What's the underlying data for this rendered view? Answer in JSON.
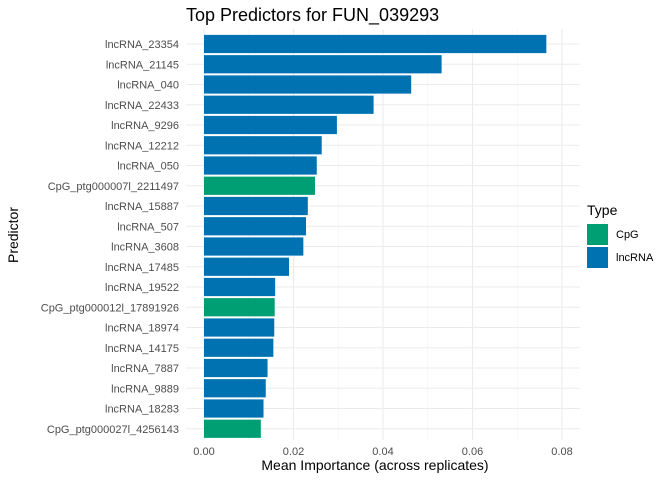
{
  "chart_data": {
    "type": "bar",
    "orientation": "horizontal",
    "title": "Top Predictors for FUN_039293",
    "xlabel": "Mean Importance (across replicates)",
    "ylabel": "Predictor",
    "xlim": [
      0,
      0.08
    ],
    "xticks": [
      0.0,
      0.02,
      0.04,
      0.06,
      0.08
    ],
    "xtick_labels": [
      "0.00",
      "0.02",
      "0.04",
      "0.06",
      "0.08"
    ],
    "grid": true,
    "legend": {
      "title": "Type",
      "position": "right",
      "entries": [
        {
          "label": "CpG",
          "color": "#009E73"
        },
        {
          "label": "lncRNA",
          "color": "#0072B2"
        }
      ]
    },
    "bars": [
      {
        "category": "lncRNA_23354",
        "value": 0.0765,
        "type": "lncRNA"
      },
      {
        "category": "lncRNA_21145",
        "value": 0.0531,
        "type": "lncRNA"
      },
      {
        "category": "lncRNA_040",
        "value": 0.0463,
        "type": "lncRNA"
      },
      {
        "category": "lncRNA_22433",
        "value": 0.0379,
        "type": "lncRNA"
      },
      {
        "category": "lncRNA_9296",
        "value": 0.0297,
        "type": "lncRNA"
      },
      {
        "category": "lncRNA_12212",
        "value": 0.0263,
        "type": "lncRNA"
      },
      {
        "category": "lncRNA_050",
        "value": 0.0252,
        "type": "lncRNA"
      },
      {
        "category": "CpG_ptg000007l_2211497",
        "value": 0.0248,
        "type": "CpG"
      },
      {
        "category": "lncRNA_15887",
        "value": 0.0232,
        "type": "lncRNA"
      },
      {
        "category": "lncRNA_507",
        "value": 0.0228,
        "type": "lncRNA"
      },
      {
        "category": "lncRNA_3608",
        "value": 0.0222,
        "type": "lncRNA"
      },
      {
        "category": "lncRNA_17485",
        "value": 0.019,
        "type": "lncRNA"
      },
      {
        "category": "lncRNA_19522",
        "value": 0.0159,
        "type": "lncRNA"
      },
      {
        "category": "CpG_ptg000012l_17891926",
        "value": 0.0158,
        "type": "CpG"
      },
      {
        "category": "lncRNA_18974",
        "value": 0.0157,
        "type": "lncRNA"
      },
      {
        "category": "lncRNA_14175",
        "value": 0.0155,
        "type": "lncRNA"
      },
      {
        "category": "lncRNA_7887",
        "value": 0.0142,
        "type": "lncRNA"
      },
      {
        "category": "lncRNA_9889",
        "value": 0.0138,
        "type": "lncRNA"
      },
      {
        "category": "lncRNA_18283",
        "value": 0.0133,
        "type": "lncRNA"
      },
      {
        "category": "CpG_ptg000027l_4256143",
        "value": 0.0127,
        "type": "CpG"
      }
    ]
  }
}
